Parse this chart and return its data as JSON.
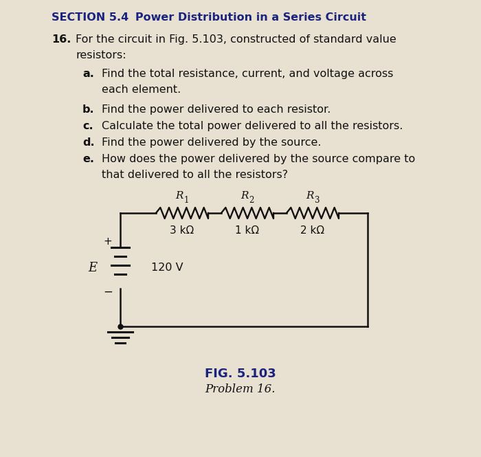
{
  "section_title_prefix": "SECTION 5.4",
  "section_title_suffix": "   Power Distribution in a Series Circuit",
  "problem_number": "16.",
  "bg_color": "#e8e0d0",
  "text_color": "#111111",
  "navy_color": "#1a237e",
  "circuit_line_color": "#111111",
  "fig_label": "FIG. 5.103",
  "fig_sublabel": "Problem 16.",
  "voltage": "120 V",
  "source_label": "E",
  "resistors": [
    {
      "label": "R",
      "sub": "1",
      "value": "3 kΩ"
    },
    {
      "label": "R",
      "sub": "2",
      "value": "1 kΩ"
    },
    {
      "label": "R",
      "sub": "3",
      "value": "2 kΩ"
    }
  ],
  "parts": [
    {
      "label": "a.",
      "line1": "Find the total resistance, current, and voltage across",
      "line2": "each element."
    },
    {
      "label": "b.",
      "line1": "Find the power delivered to each resistor.",
      "line2": ""
    },
    {
      "label": "c.",
      "line1": "Calculate the total power delivered to all the resistors.",
      "line2": ""
    },
    {
      "label": "d.",
      "line1": "Find the power delivered by the source.",
      "line2": ""
    },
    {
      "label": "e.",
      "line1": "How does the power delivered by the source compare to",
      "line2": "that delivered to all the resistors?"
    }
  ]
}
